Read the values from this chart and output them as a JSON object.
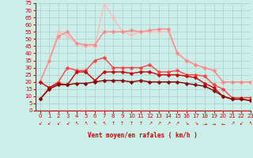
{
  "xlabel": "Vent moyen/en rafales ( km/h )",
  "background_color": "#cceee8",
  "grid_color": "#aacccc",
  "xlim": [
    -0.5,
    23
  ],
  "ylim": [
    0,
    75
  ],
  "yticks": [
    0,
    5,
    10,
    15,
    20,
    25,
    30,
    35,
    40,
    45,
    50,
    55,
    60,
    65,
    70,
    75
  ],
  "xticks": [
    0,
    1,
    2,
    3,
    4,
    5,
    6,
    7,
    8,
    9,
    10,
    11,
    12,
    13,
    14,
    15,
    16,
    17,
    18,
    19,
    20,
    21,
    22,
    23
  ],
  "series": [
    [
      20,
      35,
      55,
      52,
      47,
      45,
      45,
      75,
      65,
      55,
      53,
      55,
      55,
      55,
      55,
      40,
      35,
      32,
      30,
      28,
      20,
      20,
      20,
      20
    ],
    [
      20,
      35,
      52,
      55,
      47,
      46,
      46,
      55,
      55,
      55,
      56,
      55,
      56,
      57,
      57,
      40,
      35,
      32,
      30,
      28,
      20,
      20,
      20,
      20
    ],
    [
      8,
      16,
      20,
      30,
      28,
      28,
      35,
      37,
      30,
      30,
      30,
      30,
      32,
      27,
      27,
      28,
      25,
      25,
      24,
      18,
      15,
      9,
      9,
      9
    ],
    [
      20,
      16,
      19,
      18,
      27,
      27,
      21,
      27,
      27,
      27,
      26,
      27,
      27,
      25,
      25,
      25,
      24,
      23,
      19,
      16,
      10,
      8,
      8,
      7
    ],
    [
      8,
      15,
      18,
      18,
      19,
      19,
      20,
      21,
      21,
      21,
      20,
      21,
      20,
      20,
      20,
      20,
      19,
      18,
      17,
      14,
      10,
      8,
      8,
      7
    ]
  ],
  "colors": [
    "#ffbbbb",
    "#ff8888",
    "#ff4444",
    "#cc0000",
    "#880000"
  ],
  "markersize": [
    2.5,
    2.5,
    2.5,
    2.5,
    2.5
  ],
  "linewidths": [
    1.0,
    1.0,
    1.0,
    1.0,
    1.0
  ],
  "arrows": [
    "↙",
    "↙",
    "↙",
    "↙",
    "↖",
    "↖",
    "↖",
    "↖",
    "↑",
    "↑",
    "↑",
    "↑",
    "↗",
    "↗",
    "↗",
    "↗",
    "↘",
    "↘",
    "→",
    "→",
    "←",
    "↗",
    "↙",
    "↖"
  ]
}
